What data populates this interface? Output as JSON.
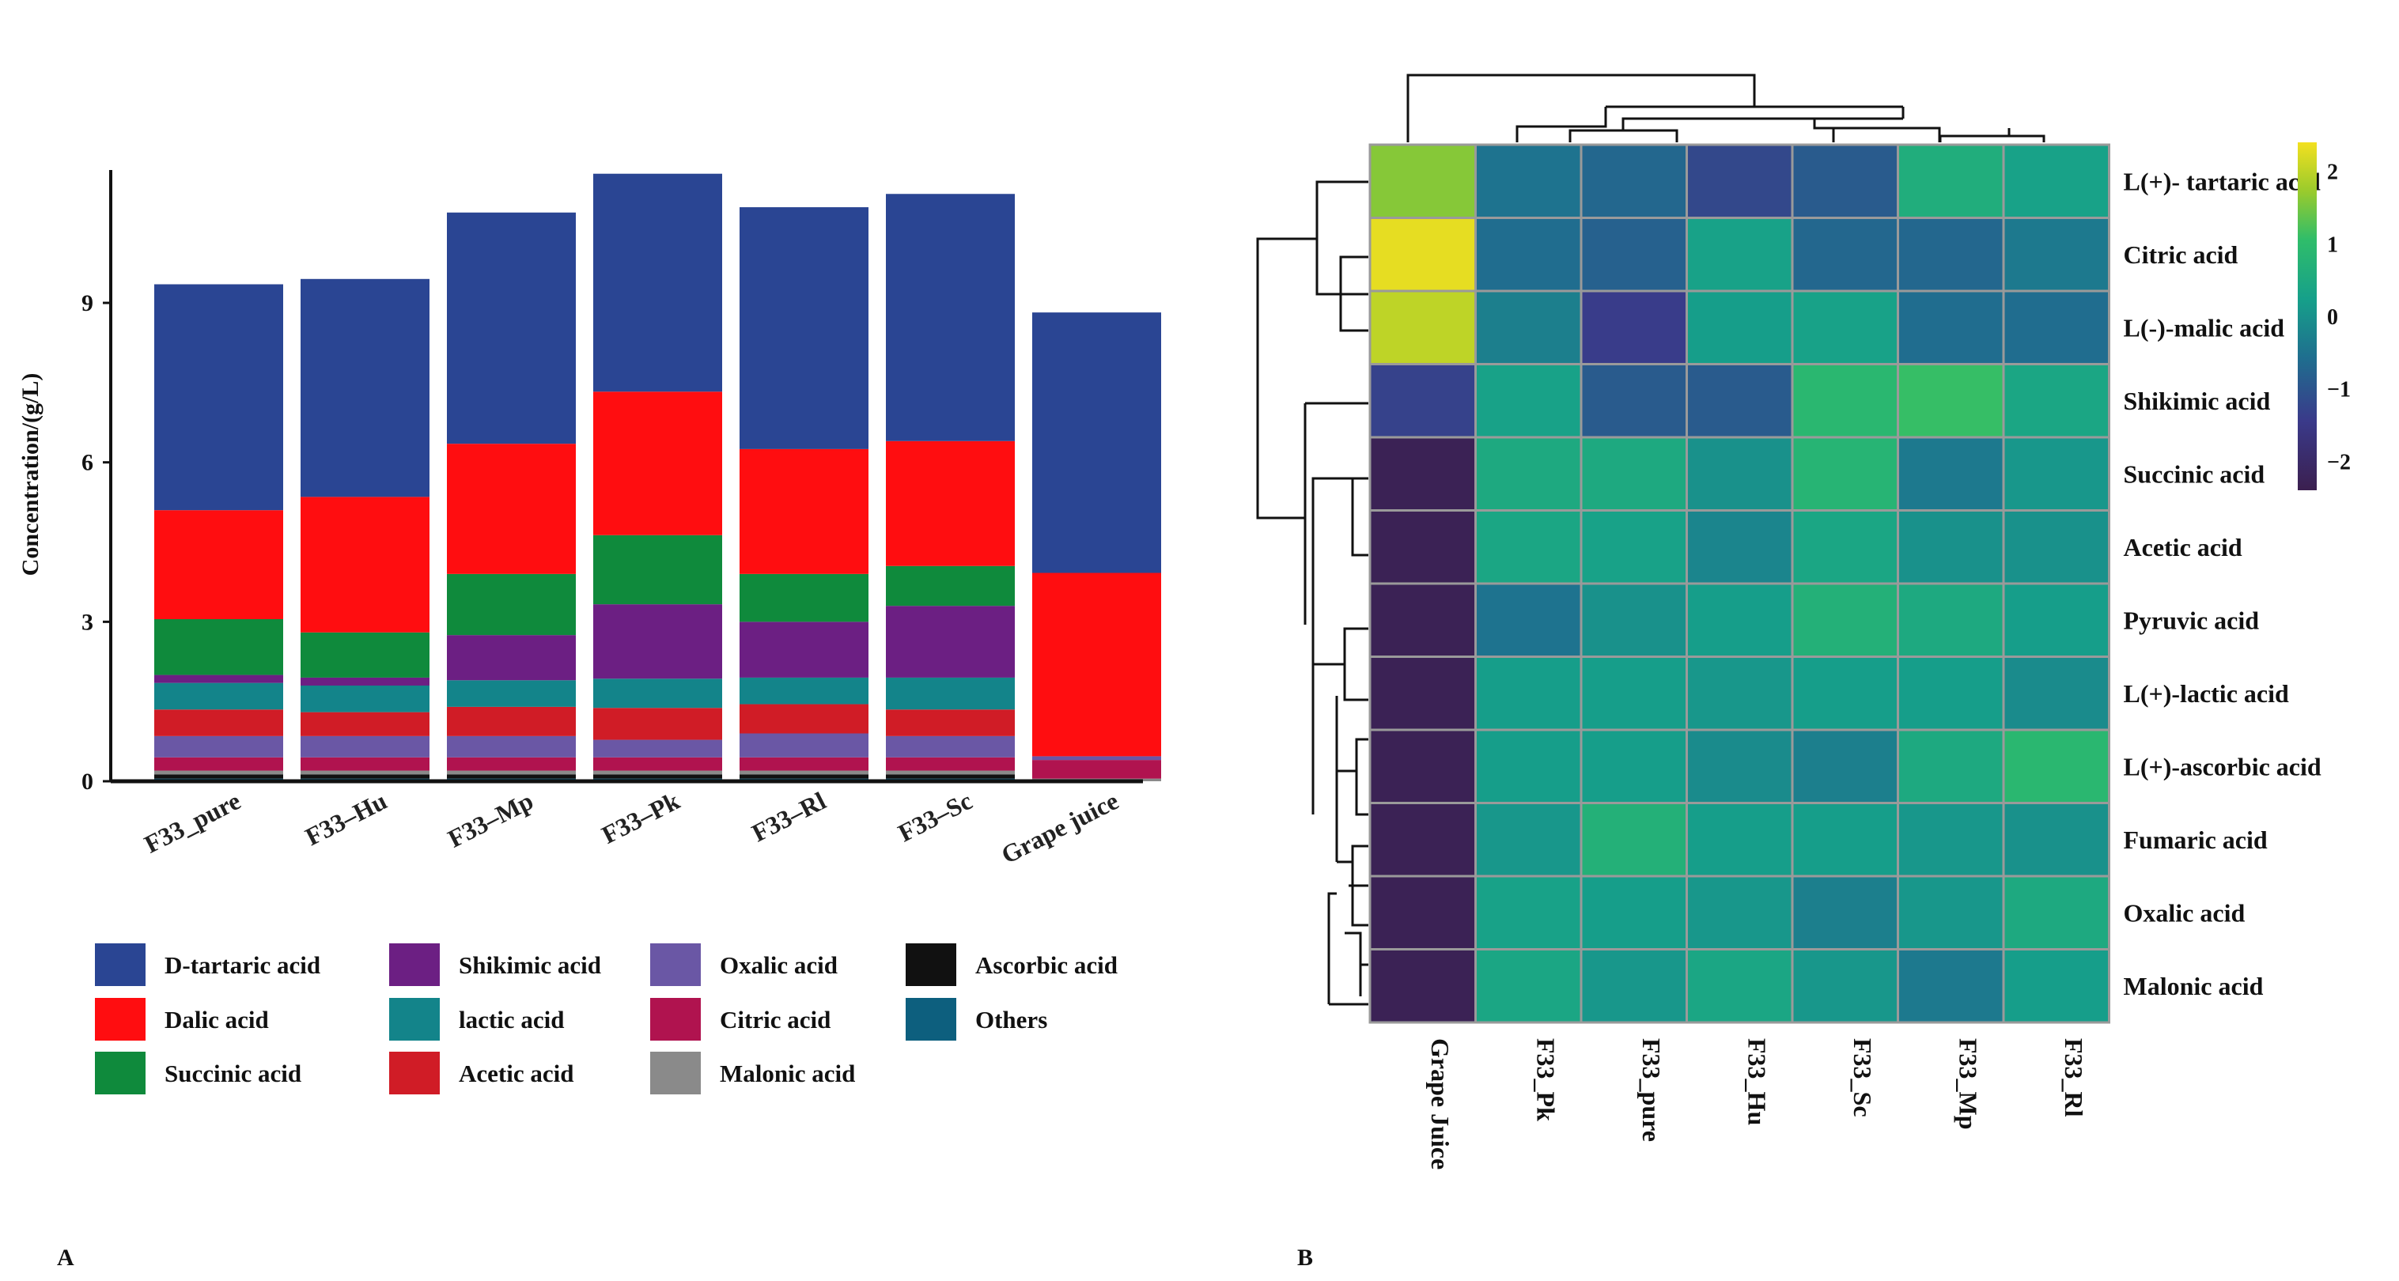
{
  "panels": {
    "a": "A",
    "b": "B"
  },
  "chart_data": [
    {
      "type": "bar",
      "stacked": true,
      "ylabel": "Concentration/(g/L)",
      "ylim": [
        0,
        11.5
      ],
      "yticks": [
        0,
        3,
        6,
        9
      ],
      "categories": [
        "F33_pure",
        "F33–Hu",
        "F33–Mp",
        "F33–Pk",
        "F33–Rl",
        "F33–Sc",
        "Grape juice"
      ],
      "legend_placement": "bottom",
      "series": [
        {
          "name": "Others",
          "color": "#0d5f7e",
          "values": [
            0.05,
            0.05,
            0.05,
            0.05,
            0.05,
            0.05,
            0.0
          ]
        },
        {
          "name": "Ascorbic acid",
          "color": "#111111",
          "values": [
            0.08,
            0.08,
            0.08,
            0.08,
            0.08,
            0.08,
            0.0
          ]
        },
        {
          "name": "Malonic acid",
          "color": "#8a8a8a",
          "values": [
            0.07,
            0.07,
            0.07,
            0.07,
            0.07,
            0.07,
            0.05
          ]
        },
        {
          "name": "Citric acid",
          "color": "#b0134f",
          "values": [
            0.25,
            0.25,
            0.25,
            0.25,
            0.25,
            0.25,
            0.35
          ]
        },
        {
          "name": "Oxalic acid",
          "color": "#6a57a5",
          "values": [
            0.4,
            0.4,
            0.4,
            0.33,
            0.45,
            0.4,
            0.07
          ]
        },
        {
          "name": "Acetic acid",
          "color": "#d01c26",
          "values": [
            0.5,
            0.45,
            0.55,
            0.6,
            0.55,
            0.5,
            0.0
          ]
        },
        {
          "name": "lactic acid",
          "color": "#13848a",
          "values": [
            0.5,
            0.5,
            0.5,
            0.55,
            0.5,
            0.6,
            0.0
          ]
        },
        {
          "name": "Shikimic acid",
          "color": "#6c1f83",
          "values": [
            0.15,
            0.15,
            0.85,
            1.4,
            1.05,
            1.35,
            0.0
          ]
        },
        {
          "name": "Succinic acid",
          "color": "#0f8a3c",
          "values": [
            1.05,
            0.85,
            1.15,
            1.3,
            0.9,
            0.75,
            0.0
          ]
        },
        {
          "name": "Dalic acid",
          "color": "#ff0d10",
          "values": [
            2.05,
            2.55,
            2.45,
            2.7,
            2.35,
            2.35,
            3.45
          ]
        },
        {
          "name": "D-tartaric acid",
          "color": "#2a4593",
          "values": [
            4.25,
            4.1,
            4.35,
            4.1,
            4.55,
            4.65,
            4.9
          ]
        }
      ],
      "legend_order": [
        "D-tartaric acid",
        "Shikimic acid",
        "Oxalic acid",
        "Ascorbic acid",
        "Dalic acid",
        "lactic acid",
        "Citric acid",
        "Others",
        "Succinic acid",
        "Acetic acid",
        "Malonic acid"
      ]
    },
    {
      "type": "heatmap",
      "rows": [
        "L(+)- tartaric acid",
        "Citric acid",
        "L(-)-malic acid",
        "Shikimic acid",
        "Succinic acid",
        "Acetic acid",
        "Pyruvic acid",
        "L(+)-lactic acid",
        "L(+)-ascorbic acid",
        "Fumaric acid",
        "Oxalic acid",
        "Malonic acid"
      ],
      "columns": [
        "Grape Juice",
        "F33_Pk",
        "F33_pure",
        "F33_Hu",
        "F33_Sc",
        "F33_Mp",
        "F33_Rl"
      ],
      "values": [
        [
          1.6,
          -0.5,
          -0.7,
          -1.2,
          -0.9,
          0.6,
          0.3
        ],
        [
          2.3,
          -0.6,
          -0.8,
          0.3,
          -0.7,
          -0.7,
          -0.4
        ],
        [
          2.0,
          -0.3,
          -1.4,
          0.2,
          0.3,
          -0.6,
          -0.6
        ],
        [
          -1.3,
          0.3,
          -0.9,
          -0.9,
          0.9,
          1.1,
          0.4
        ],
        [
          -2.3,
          0.5,
          0.5,
          0.0,
          0.8,
          -0.4,
          0.1
        ],
        [
          -2.3,
          0.4,
          0.3,
          -0.2,
          0.4,
          0.0,
          0.0
        ],
        [
          -2.3,
          -0.5,
          0.0,
          0.2,
          0.7,
          0.5,
          0.2
        ],
        [
          -2.3,
          0.2,
          0.2,
          0.1,
          0.2,
          0.2,
          -0.1
        ],
        [
          -2.3,
          0.2,
          0.2,
          -0.1,
          -0.3,
          0.5,
          0.9
        ],
        [
          -2.3,
          0.1,
          0.7,
          0.2,
          0.2,
          0.1,
          0.0
        ],
        [
          -2.3,
          0.3,
          0.2,
          0.1,
          -0.3,
          0.1,
          0.5
        ],
        [
          -2.3,
          0.4,
          0.1,
          0.4,
          0.1,
          -0.4,
          0.2
        ]
      ],
      "colorbar_ticks": [
        2,
        1,
        0,
        -1,
        -2
      ],
      "color_range": [
        -2.4,
        2.4
      ]
    }
  ]
}
